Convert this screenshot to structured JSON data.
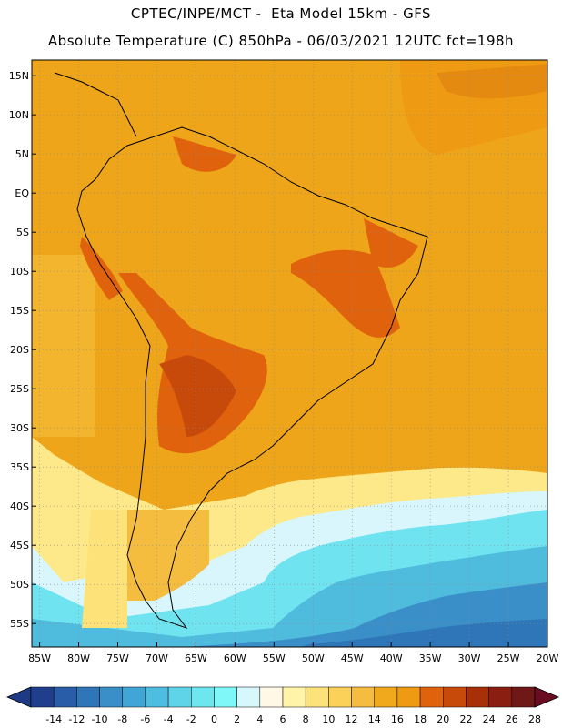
{
  "header": {
    "title_line1": "CPTEC/INPE/MCT -  Eta Model 15km - GFS",
    "title_line2": "Absolute Temperature (C) 850hPa - 06/03/2021 12UTC fct=198h"
  },
  "map": {
    "lat_labels": [
      "15N",
      "10N",
      "5N",
      "EQ",
      "5S",
      "10S",
      "15S",
      "20S",
      "25S",
      "30S",
      "35S",
      "40S",
      "45S",
      "50S",
      "55S"
    ],
    "lon_labels": [
      "85W",
      "80W",
      "75W",
      "70W",
      "65W",
      "60W",
      "55W",
      "50W",
      "45W",
      "40W",
      "35W",
      "30W",
      "25W",
      "20W"
    ],
    "extent": {
      "lon_min": -86,
      "lon_max": -20,
      "lat_min": -58,
      "lat_max": 17
    }
  },
  "colorbar": {
    "labels": [
      "-14",
      "-12",
      "-10",
      "-8",
      "-6",
      "-4",
      "-2",
      "0",
      "2",
      "4",
      "6",
      "8",
      "10",
      "12",
      "14",
      "16",
      "18",
      "20",
      "22",
      "24",
      "26",
      "28"
    ],
    "colors": [
      "#1f3f8c",
      "#2a5da8",
      "#2f76b8",
      "#3a8fc8",
      "#3fa6d6",
      "#4fbde0",
      "#5fd3e8",
      "#6ee6f0",
      "#7ff6f8",
      "#d6f7fb",
      "#fff8e6",
      "#fff4a8",
      "#fde27a",
      "#fbd159",
      "#f5bd3f",
      "#f0a91c",
      "#ee9a12",
      "#e0620c",
      "#c84a0a",
      "#a83008",
      "#8a1e10",
      "#6e1818"
    ],
    "low_color": "#1e3a84",
    "high_color": "#6a0c22"
  }
}
